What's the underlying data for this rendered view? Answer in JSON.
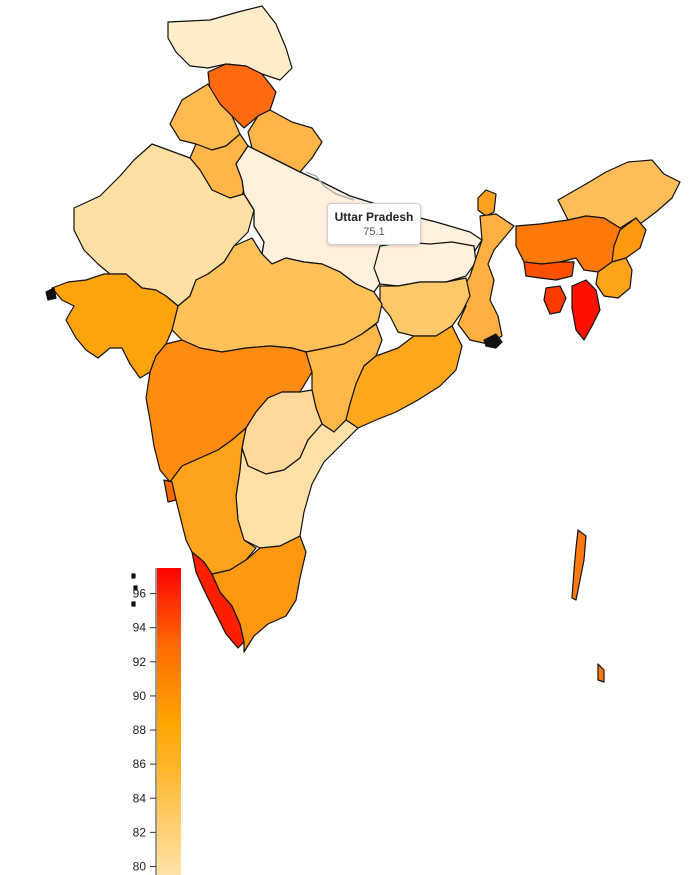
{
  "map": {
    "region": "India",
    "colors": {
      "scale_low": "#ffe3a8",
      "scale_mid": "#ffa500",
      "scale_high": "#ff0000",
      "border": "#111111",
      "hover_fill": "#fff1dc"
    }
  },
  "tooltip": {
    "state": "Uttar Pradesh",
    "value": "75.1"
  },
  "legend": {
    "min": 79.5,
    "max": 97.5,
    "ticks": [
      "80",
      "82",
      "84",
      "86",
      "88",
      "90",
      "92",
      "94",
      "96"
    ]
  }
}
